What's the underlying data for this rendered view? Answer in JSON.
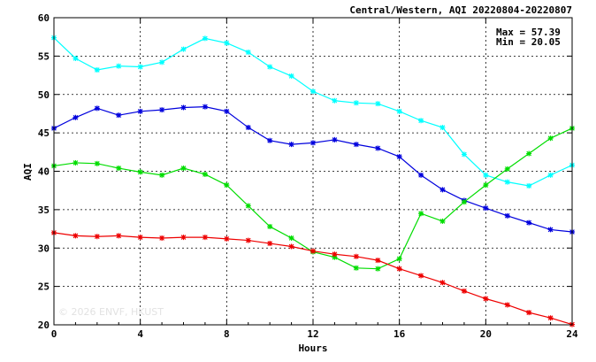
{
  "chart_data": {
    "type": "line",
    "title": "Central/Western, AQI 20220804-20220807",
    "xlabel": "Hours",
    "ylabel": "AQI",
    "xlim": [
      0,
      24
    ],
    "ylim": [
      20,
      60
    ],
    "xticks": [
      0,
      4,
      8,
      12,
      16,
      20,
      24
    ],
    "yticks": [
      20,
      25,
      30,
      35,
      40,
      45,
      50,
      55,
      60
    ],
    "grid": true,
    "stats": {
      "max": "Max = 57.39",
      "min": "Min = 20.05"
    },
    "watermark": "© 2026 ENVF, HKUST",
    "x": [
      0,
      1,
      2,
      3,
      4,
      5,
      6,
      7,
      8,
      9,
      10,
      11,
      12,
      13,
      14,
      15,
      16,
      17,
      18,
      19,
      20,
      21,
      22,
      23,
      24
    ],
    "series": [
      {
        "color": "#00ffff",
        "values": [
          57.39,
          54.7,
          53.2,
          53.7,
          53.6,
          54.2,
          55.9,
          57.3,
          56.7,
          55.5,
          53.6,
          52.4,
          50.4,
          49.2,
          48.9,
          48.8,
          47.8,
          46.6,
          45.7,
          42.2,
          39.5,
          38.6,
          38.1,
          39.5,
          40.8
        ]
      },
      {
        "color": "#0000dd",
        "values": [
          45.6,
          47.0,
          48.2,
          47.3,
          47.8,
          48.0,
          48.3,
          48.4,
          47.8,
          45.7,
          44.0,
          43.5,
          43.7,
          44.1,
          43.5,
          43.0,
          41.9,
          39.5,
          37.6,
          36.2,
          35.2,
          34.2,
          33.3,
          32.4,
          32.1
        ]
      },
      {
        "color": "#00dd00",
        "values": [
          40.7,
          41.1,
          41.0,
          40.4,
          39.9,
          39.5,
          40.4,
          39.6,
          38.2,
          35.5,
          32.8,
          31.3,
          29.5,
          28.8,
          27.4,
          27.3,
          28.6,
          34.5,
          33.5,
          36.0,
          38.2,
          40.3,
          42.3,
          44.3,
          45.6
        ]
      },
      {
        "color": "#ee0000",
        "values": [
          32.0,
          31.6,
          31.5,
          31.6,
          31.4,
          31.3,
          31.4,
          31.4,
          31.2,
          31.0,
          30.6,
          30.2,
          29.6,
          29.2,
          28.9,
          28.4,
          27.3,
          26.4,
          25.5,
          24.4,
          23.4,
          22.6,
          21.6,
          20.9,
          20.05
        ]
      }
    ]
  }
}
